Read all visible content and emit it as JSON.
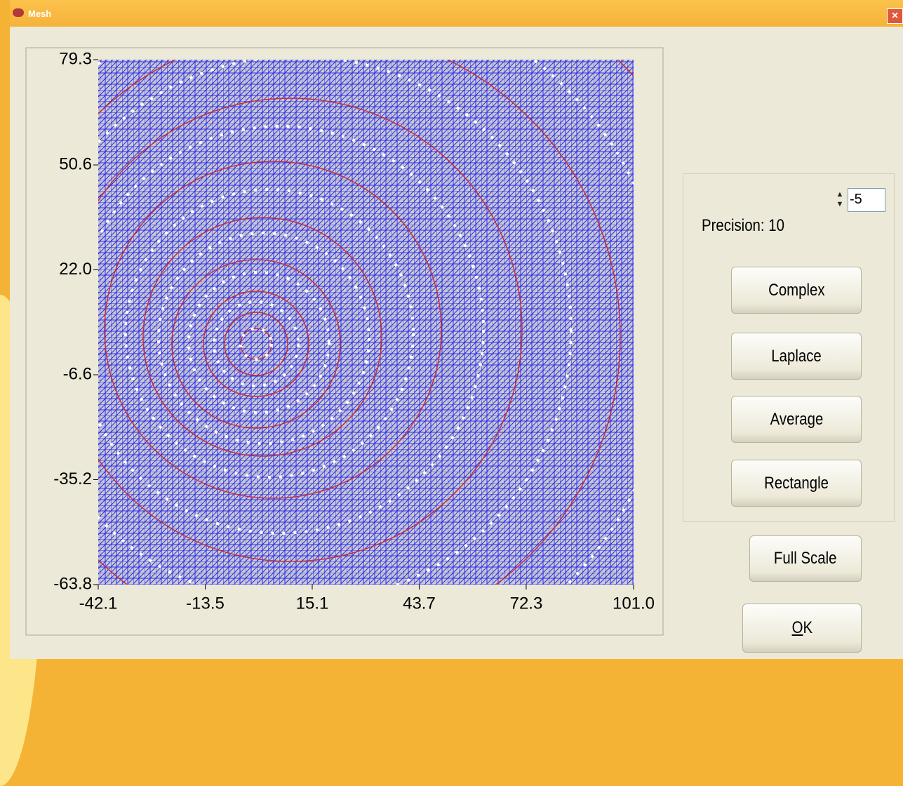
{
  "window": {
    "title": "Mesh"
  },
  "plot": {
    "xlim": [
      -42.1,
      101.0
    ],
    "ylim": [
      -63.8,
      79.3
    ],
    "xticks": [
      -42.1,
      -13.5,
      15.1,
      43.7,
      72.3,
      {
        "value": 101,
        "label": "101.0"
      }
    ],
    "yticks": [
      -63.8,
      -35.2,
      -6.6,
      {
        "value": 22,
        "label": "22.0"
      },
      50.6,
      79.3
    ]
  },
  "precision": {
    "label": "Precision: 10",
    "exponent": "-5"
  },
  "buttons": [
    "Complex",
    "Laplace",
    "Average",
    "Rectangle",
    "Full Scale",
    "OK"
  ]
}
